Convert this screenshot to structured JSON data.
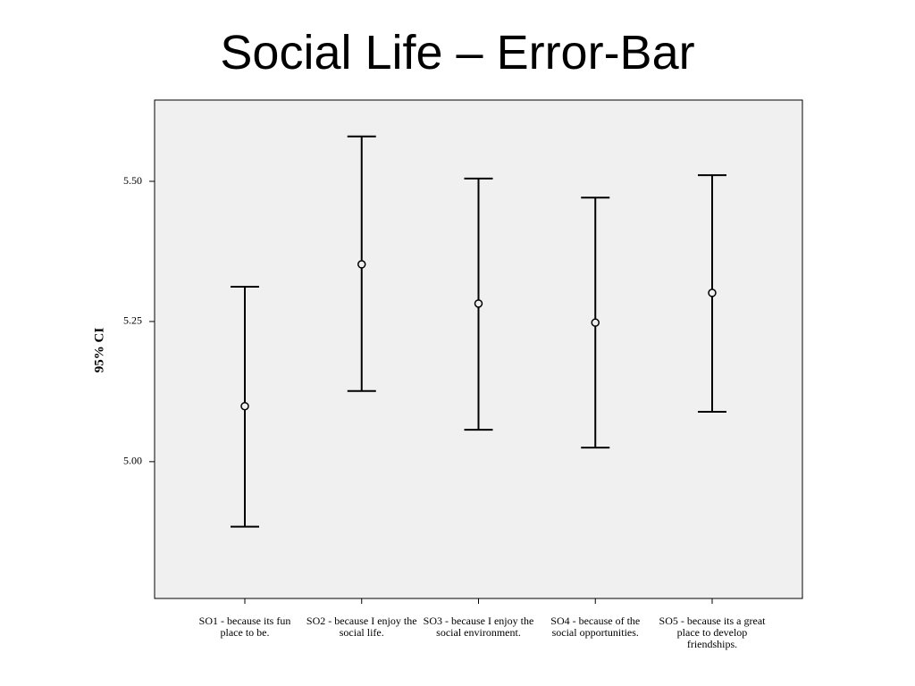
{
  "title": "Social Life – Error-Bar",
  "chart_data": {
    "type": "errorbar",
    "ylabel": "95% CI",
    "categories": [
      "SO1 - because its fun place to be.",
      "SO2 - because I enjoy the social life.",
      "SO3 - because I enjoy the social environment.",
      "SO4 - because of the social opportunities.",
      "SO5 - because its a great place to develop friendships."
    ],
    "series": [
      {
        "name": "95% CI",
        "color": "#000000",
        "values": [
          5.099,
          5.352,
          5.282,
          5.248,
          5.301
        ],
        "lower": [
          4.884,
          5.126,
          5.057,
          5.025,
          5.089
        ],
        "upper": [
          5.312,
          5.58,
          5.505,
          5.471,
          5.511
        ]
      }
    ],
    "ylim": [
      4.756,
      5.645
    ],
    "yticks": [
      {
        "value": 5.0,
        "label": "5.00"
      },
      5.25,
      {
        "value": 5.5,
        "label": "5.50"
      }
    ],
    "background": "#f0f0f0"
  }
}
